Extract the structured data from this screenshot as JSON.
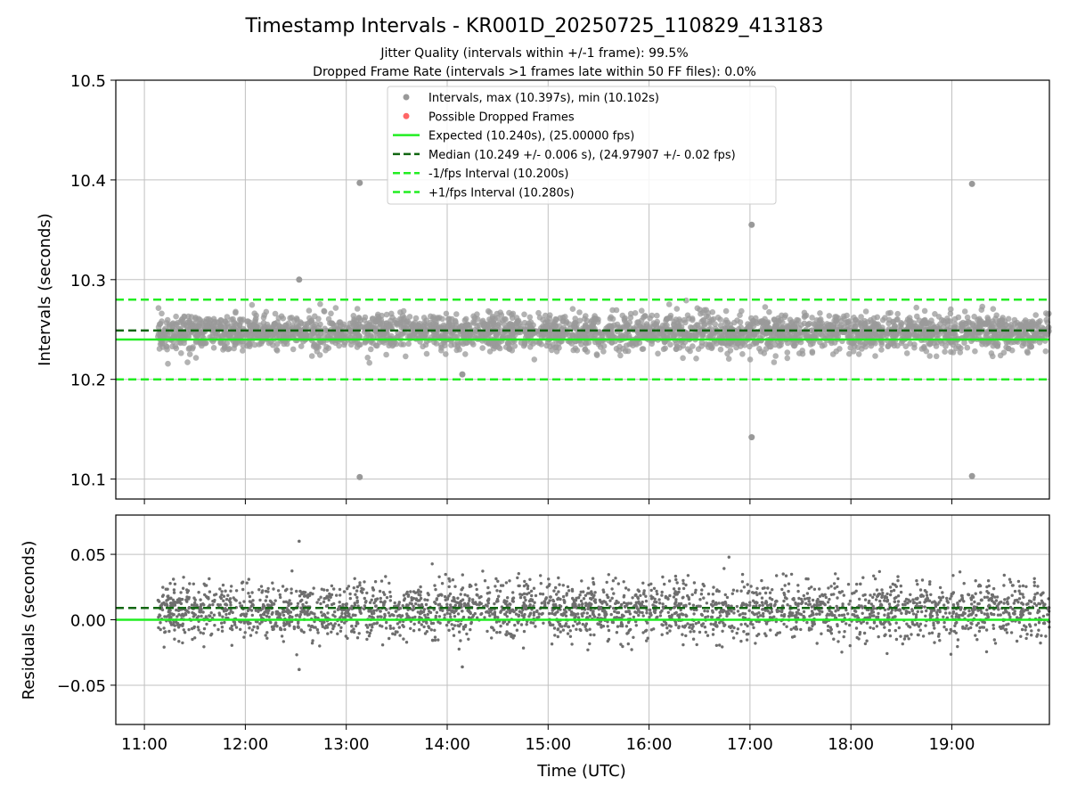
{
  "title": "Timestamp Intervals - KR001D_20250725_110829_413183",
  "subtitle1": "Jitter Quality (intervals within +/-1 frame): 99.5%",
  "subtitle2": "Dropped Frame Rate (intervals >1 frames late within 50 FF files): 0.0%",
  "colors": {
    "points": "#999999",
    "residual_points": "#6e6e6e",
    "dropped": "#ff6666",
    "expected": "#22ee22",
    "median": "#116611",
    "fps_bounds": "#22ee22",
    "grid": "#c0c0c0"
  },
  "chart_data": [
    {
      "type": "scatter",
      "panel": "intervals",
      "ylabel": "Intervals (seconds)",
      "ylim": [
        10.08,
        10.5
      ],
      "yticks": [
        "10.1",
        "10.2",
        "10.3",
        "10.4",
        "10.5"
      ],
      "xlim": [
        "10:43",
        "19:58"
      ],
      "grid": true,
      "legend_position": "top-center",
      "legend": [
        {
          "label": "Intervals, max (10.397s), min (10.102s)",
          "style": "point-gray"
        },
        {
          "label": "Possible Dropped Frames",
          "style": "point-red"
        },
        {
          "label": "Expected (10.240s), (25.00000 fps)",
          "style": "solid-lime"
        },
        {
          "label": "Median (10.249 +/- 0.006 s), (24.97907 +/- 0.02 fps)",
          "style": "dashed-darkgreen"
        },
        {
          "label": "-1/fps Interval (10.200s)",
          "style": "dashed-lime"
        },
        {
          "label": "+1/fps Interval (10.280s)",
          "style": "dashed-lime"
        }
      ],
      "reference_lines": {
        "expected": 10.24,
        "median": 10.249,
        "minus_fps": 10.2,
        "plus_fps": 10.28
      },
      "series": [
        {
          "name": "Intervals",
          "time_range": [
            "11:08",
            "19:58"
          ],
          "center": 10.247,
          "spread": 0.01,
          "count": 2900,
          "outliers": [
            {
              "x": "12:32",
              "y": 10.3
            },
            {
              "x": "13:08",
              "y": 10.397
            },
            {
              "x": "13:08",
              "y": 10.102
            },
            {
              "x": "14:09",
              "y": 10.205
            },
            {
              "x": "17:01",
              "y": 10.355
            },
            {
              "x": "17:01",
              "y": 10.142
            },
            {
              "x": "19:12",
              "y": 10.396
            },
            {
              "x": "19:12",
              "y": 10.103
            }
          ]
        },
        {
          "name": "Possible Dropped Frames",
          "values": []
        }
      ]
    },
    {
      "type": "scatter",
      "panel": "residuals",
      "ylabel": "Residuals (seconds)",
      "xlabel": "Time (UTC)",
      "ylim": [
        -0.08,
        0.08
      ],
      "yticks": [
        "−0.05",
        "0.00",
        "0.05"
      ],
      "xticks": [
        "11:00",
        "12:00",
        "13:00",
        "14:00",
        "15:00",
        "16:00",
        "17:00",
        "18:00",
        "19:00"
      ],
      "xlim": [
        "10:43",
        "19:58"
      ],
      "grid": true,
      "reference_lines": {
        "zero": 0.0,
        "median": 0.009
      },
      "series": [
        {
          "name": "Residuals",
          "time_range": [
            "11:08",
            "19:58"
          ],
          "center": 0.007,
          "spread": 0.012,
          "count": 2900,
          "outliers": [
            {
              "x": "12:32",
              "y": 0.06
            },
            {
              "x": "12:32",
              "y": -0.038
            },
            {
              "x": "14:09",
              "y": -0.036
            }
          ]
        }
      ]
    }
  ]
}
